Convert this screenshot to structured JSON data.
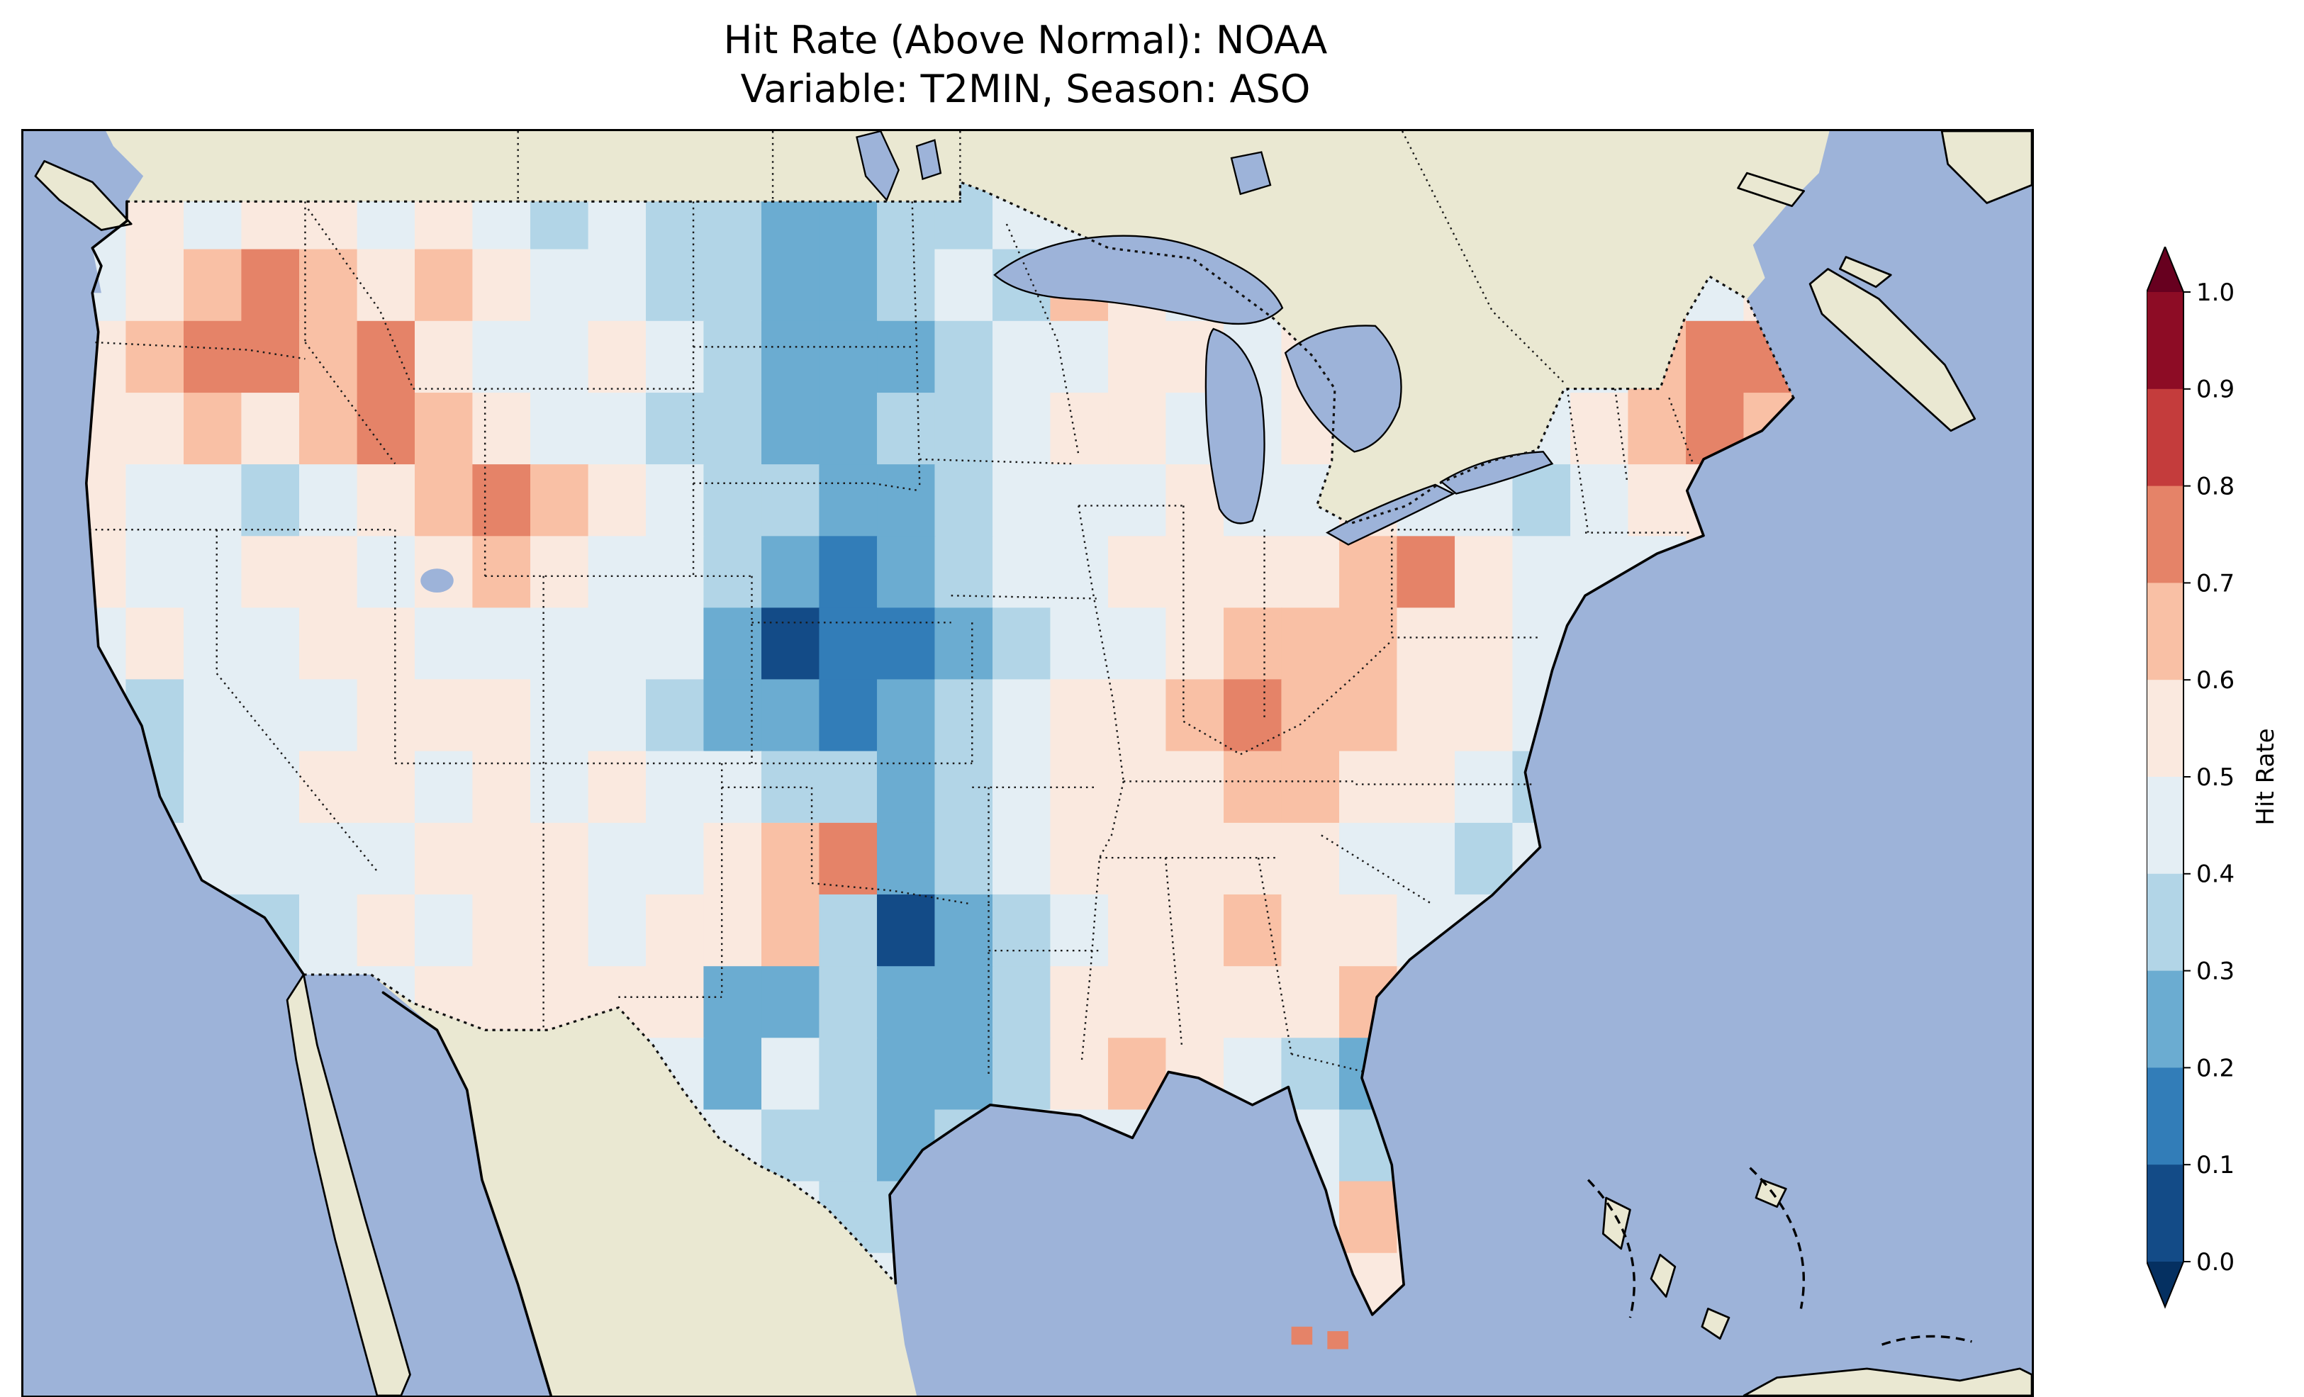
{
  "title": {
    "line1": "Hit Rate (Above Normal): NOAA",
    "line2": "Variable: T2MIN, Season: ASO"
  },
  "colorbar": {
    "label": "Hit Rate",
    "ticks": [
      "1.0",
      "0.9",
      "0.8",
      "0.7",
      "0.6",
      "0.5",
      "0.4",
      "0.3",
      "0.2",
      "0.1",
      "0.0"
    ],
    "bin_colors": [
      "#134b87",
      "#327db8",
      "#6bacd1",
      "#b2d5e7",
      "#e4eef4",
      "#fae9df",
      "#f9c0a5",
      "#e58368",
      "#c43c3c",
      "#8d0c25"
    ],
    "extend_under_color": "#053061",
    "extend_over_color": "#67001f"
  },
  "map": {
    "ocean_color": "#9db3d9",
    "land_color": "#eae8d2",
    "coastline_color": "#000000",
    "boundary_line_style": "dotted"
  },
  "chart_data": {
    "type": "heatmap",
    "title": "Hit Rate (Above Normal): NOAA",
    "subtitle": "Variable: T2MIN, Season: ASO",
    "dataset": "NOAA",
    "variable": "T2MIN",
    "season": "ASO",
    "metric": "Hit Rate (Above Normal)",
    "colorbar_label": "Hit Rate",
    "value_range": [
      0.0,
      1.0
    ],
    "tick_step": 0.1,
    "colormap": "RdBu_r, binned every 0.1, extend both ends",
    "region": "Contiguous United States (gridded map, data over CONUS only; Canada/Mexico masked)",
    "grid": {
      "note": "Approximate hit-rate field read from the map. Each character is a bin digit d meaning value in [d/10,(d+1)/10), i.e. value ~ d/10+0.05. Grid starts at lon_west/lat_north, stepping east/south per cell. Cells outside the U.S. are masked by the map outline.",
      "lon_west": -125,
      "lon_step_deg": 1.94,
      "lat_north": 49.5,
      "lat_step_deg": 1.53,
      "rows": [
        "454554543433223344444444444444",
        "456765654433223436544444456645",
        "567767544543222344554544444677",
        "556567654433223345544554345676",
        "544345676543322344454454434555",
        "544554565443212344555567544455",
        "454455444442011234456665544355",
        "434445554432212345567665544444",
        "334455454544332345556655434444",
        "344444555445672345555544344444",
        "443345455455630234556554444444",
        "444444555552232235555565444444",
        "444444455542432235654323444444",
        "444444444444332344444434444444",
        "444444444444433444444465544444",
        "444444444444444444444455444444"
      ]
    },
    "offshore_keys_points": {
      "bins": [
        7,
        7
      ],
      "note": "two small orange grid cells south of the Florida Keys"
    }
  }
}
